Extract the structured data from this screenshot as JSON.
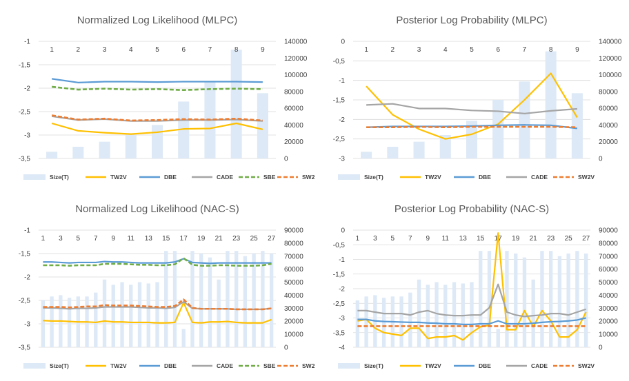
{
  "palette": {
    "bar": "#dde9f6",
    "TW2V": "#ffc000",
    "DBE": "#5b9bd5",
    "CADE": "#a5a5a5",
    "SBE": "#70ad47",
    "SW2V": "#ed7d31",
    "grid": "#d9d9d9"
  },
  "chart_data": [
    {
      "type": "bar+line",
      "title": "Normalized Log Likelihood (MLPC)",
      "legend": [
        "Size(T)",
        "TW2V",
        "DBE",
        "CADE",
        "SBE",
        "SW2V"
      ],
      "legend_position": "bottom",
      "grid": true,
      "x": [
        "1",
        "2",
        "3",
        "4",
        "5",
        "6",
        "7",
        "8",
        "9"
      ],
      "x_tick_labels": [
        "1",
        "2",
        "3",
        "4",
        "5",
        "6",
        "7",
        "8",
        "9"
      ],
      "ylim": [
        -3.5,
        -1
      ],
      "yticks": [
        -3.5,
        -3,
        -2.5,
        -2,
        -1.5,
        -1
      ],
      "ytick_labels": [
        "-3,5",
        "-3",
        "-2,5",
        "-2",
        "-1,5",
        "-1"
      ],
      "y2lim": [
        0,
        140000
      ],
      "y2ticks": [
        0,
        20000,
        40000,
        60000,
        80000,
        100000,
        120000,
        140000
      ],
      "bars": [
        8000,
        14000,
        20000,
        28000,
        40000,
        68000,
        92000,
        130000,
        78000
      ],
      "series": [
        {
          "name": "TW2V",
          "values": [
            -2.75,
            -2.91,
            -2.95,
            -2.98,
            -2.94,
            -2.87,
            -2.86,
            -2.75,
            -2.88
          ]
        },
        {
          "name": "DBE",
          "values": [
            -1.8,
            -1.88,
            -1.86,
            -1.86,
            -1.87,
            -1.86,
            -1.86,
            -1.86,
            -1.87
          ]
        },
        {
          "name": "CADE",
          "values": [
            -2.6,
            -2.68,
            -2.66,
            -2.7,
            -2.7,
            -2.68,
            -2.68,
            -2.67,
            -2.7
          ]
        },
        {
          "name": "SBE",
          "values": [
            -1.97,
            -2.03,
            -2.01,
            -2.03,
            -2.02,
            -2.04,
            -2.02,
            -2.01,
            -2.02
          ]
        },
        {
          "name": "SW2V",
          "values": [
            -2.58,
            -2.67,
            -2.65,
            -2.69,
            -2.68,
            -2.66,
            -2.67,
            -2.65,
            -2.69
          ]
        }
      ]
    },
    {
      "type": "bar+line",
      "title": "Posterior Log Probability (MLPC)",
      "legend": [
        "Size(T)",
        "TW2V",
        "DBE",
        "CADE",
        "SW2V"
      ],
      "legend_position": "bottom",
      "grid": true,
      "x": [
        "1",
        "2",
        "3",
        "4",
        "5",
        "6",
        "7",
        "8",
        "9"
      ],
      "x_tick_labels": [
        "1",
        "2",
        "3",
        "4",
        "5",
        "6",
        "7",
        "8",
        "9"
      ],
      "ylim": [
        -3,
        0
      ],
      "yticks": [
        -3,
        -2.5,
        -2,
        -1.5,
        -1,
        -0.5,
        0
      ],
      "ytick_labels": [
        "-3",
        "-2,5",
        "-2",
        "-1,5",
        "-1",
        "-0,5",
        "0"
      ],
      "y2lim": [
        0,
        140000
      ],
      "y2ticks": [
        0,
        20000,
        40000,
        60000,
        80000,
        100000,
        120000,
        140000
      ],
      "bars": [
        8000,
        14000,
        20000,
        28000,
        45000,
        70000,
        92000,
        128000,
        78000
      ],
      "series": [
        {
          "name": "TW2V",
          "values": [
            -1.15,
            -1.88,
            -2.25,
            -2.5,
            -2.38,
            -2.12,
            -1.5,
            -0.82,
            -1.95
          ]
        },
        {
          "name": "DBE",
          "values": [
            -2.2,
            -2.18,
            -2.18,
            -2.18,
            -2.17,
            -2.15,
            -2.14,
            -2.15,
            -2.23
          ]
        },
        {
          "name": "CADE",
          "values": [
            -1.63,
            -1.6,
            -1.72,
            -1.72,
            -1.77,
            -1.79,
            -1.85,
            -1.78,
            -1.73
          ]
        },
        {
          "name": "SW2V",
          "values": [
            -2.2,
            -2.2,
            -2.19,
            -2.2,
            -2.19,
            -2.19,
            -2.19,
            -2.19,
            -2.2
          ]
        }
      ]
    },
    {
      "type": "bar+line",
      "title": "Normalized Log Likelihood (NAC-S)",
      "legend": [
        "Size(T)",
        "TW2V",
        "DBE",
        "CADE",
        "SBE",
        "SW2V"
      ],
      "legend_position": "bottom",
      "grid": true,
      "x": [
        "1",
        "2",
        "3",
        "4",
        "5",
        "6",
        "7",
        "8",
        "9",
        "10",
        "11",
        "12",
        "13",
        "14",
        "15",
        "16",
        "17",
        "18",
        "19",
        "20",
        "21",
        "22",
        "23",
        "24",
        "25",
        "26",
        "27"
      ],
      "x_tick_labels": [
        "1",
        "3",
        "5",
        "7",
        "9",
        "11",
        "13",
        "15",
        "17",
        "19",
        "21",
        "23",
        "25",
        "27"
      ],
      "ylim": [
        -3.5,
        -1
      ],
      "yticks": [
        -3.5,
        -3,
        -2.5,
        -2,
        -1.5,
        -1
      ],
      "ytick_labels": [
        "-3,5",
        "-3",
        "-2,5",
        "-2",
        "-1,5",
        "-1"
      ],
      "y2lim": [
        0,
        90000
      ],
      "y2ticks": [
        0,
        10000,
        20000,
        30000,
        40000,
        50000,
        60000,
        70000,
        80000,
        90000
      ],
      "bars": [
        36000,
        39000,
        40000,
        38000,
        39000,
        39000,
        42000,
        52000,
        48000,
        50000,
        48000,
        50000,
        49000,
        50000,
        74000,
        74000,
        14000,
        74000,
        72000,
        69000,
        52000,
        74000,
        74000,
        70000,
        72000,
        74000,
        72000
      ],
      "series": [
        {
          "name": "TW2V",
          "values": [
            -2.93,
            -2.94,
            -2.94,
            -2.95,
            -2.96,
            -2.96,
            -2.97,
            -2.94,
            -2.96,
            -2.96,
            -2.97,
            -2.97,
            -2.97,
            -2.98,
            -2.98,
            -2.97,
            -2.55,
            -2.97,
            -2.98,
            -2.96,
            -2.96,
            -2.95,
            -2.97,
            -2.98,
            -2.98,
            -2.98,
            -2.91
          ]
        },
        {
          "name": "DBE",
          "values": [
            -1.68,
            -1.68,
            -1.69,
            -1.7,
            -1.69,
            -1.69,
            -1.69,
            -1.67,
            -1.68,
            -1.68,
            -1.69,
            -1.7,
            -1.7,
            -1.7,
            -1.7,
            -1.68,
            -1.61,
            -1.69,
            -1.7,
            -1.71,
            -1.7,
            -1.7,
            -1.7,
            -1.7,
            -1.7,
            -1.7,
            -1.7
          ]
        },
        {
          "name": "CADE",
          "values": [
            -2.66,
            -2.66,
            -2.67,
            -2.68,
            -2.67,
            -2.67,
            -2.66,
            -2.64,
            -2.64,
            -2.64,
            -2.64,
            -2.65,
            -2.66,
            -2.66,
            -2.67,
            -2.65,
            -2.53,
            -2.67,
            -2.68,
            -2.68,
            -2.68,
            -2.68,
            -2.69,
            -2.69,
            -2.69,
            -2.69,
            -2.67
          ]
        },
        {
          "name": "SBE",
          "values": [
            -1.75,
            -1.75,
            -1.75,
            -1.76,
            -1.75,
            -1.75,
            -1.75,
            -1.72,
            -1.72,
            -1.72,
            -1.73,
            -1.74,
            -1.74,
            -1.75,
            -1.75,
            -1.73,
            -1.6,
            -1.74,
            -1.76,
            -1.76,
            -1.75,
            -1.75,
            -1.76,
            -1.76,
            -1.76,
            -1.75,
            -1.72
          ]
        },
        {
          "name": "SW2V",
          "values": [
            -2.64,
            -2.64,
            -2.64,
            -2.65,
            -2.64,
            -2.63,
            -2.63,
            -2.6,
            -2.61,
            -2.61,
            -2.61,
            -2.62,
            -2.63,
            -2.64,
            -2.64,
            -2.62,
            -2.48,
            -2.66,
            -2.68,
            -2.68,
            -2.68,
            -2.68,
            -2.69,
            -2.69,
            -2.69,
            -2.69,
            -2.67
          ]
        }
      ]
    },
    {
      "type": "bar+line",
      "title": "Posterior Log Probability (NAC-S)",
      "legend": [
        "Size(T)",
        "TW2V",
        "DBE",
        "CADE",
        "SW2V"
      ],
      "legend_position": "bottom",
      "grid": true,
      "x": [
        "1",
        "2",
        "3",
        "4",
        "5",
        "6",
        "7",
        "8",
        "9",
        "10",
        "11",
        "12",
        "13",
        "14",
        "15",
        "16",
        "17",
        "18",
        "19",
        "20",
        "21",
        "22",
        "23",
        "24",
        "25",
        "26",
        "27"
      ],
      "x_tick_labels": [
        "1",
        "3",
        "5",
        "7",
        "9",
        "11",
        "13",
        "15",
        "17",
        "19",
        "21",
        "23",
        "25",
        "27"
      ],
      "ylim": [
        -4,
        0
      ],
      "yticks": [
        -4,
        -3.5,
        -3,
        -2.5,
        -2,
        -1.5,
        -1,
        -0.5,
        0
      ],
      "ytick_labels": [
        "-4",
        "-3,5",
        "-3",
        "-2,5",
        "-2",
        "-1,5",
        "-1",
        "-0,5",
        "0"
      ],
      "y2lim": [
        0,
        90000
      ],
      "y2ticks": [
        0,
        10000,
        20000,
        30000,
        40000,
        50000,
        60000,
        70000,
        80000,
        90000
      ],
      "bars": [
        36000,
        39000,
        40000,
        38000,
        39000,
        39000,
        42000,
        52000,
        48000,
        50000,
        48000,
        50000,
        49000,
        50000,
        74000,
        74000,
        14000,
        74000,
        72000,
        69000,
        52000,
        74000,
        74000,
        70000,
        72000,
        74000,
        72000
      ],
      "series": [
        {
          "name": "TW2V",
          "values": [
            -3.1,
            -3.05,
            -3.35,
            -3.5,
            -3.55,
            -3.6,
            -3.35,
            -3.35,
            -3.7,
            -3.65,
            -3.65,
            -3.6,
            -3.75,
            -3.5,
            -3.3,
            -3.25,
            -0.1,
            -3.4,
            -3.4,
            -2.75,
            -3.3,
            -2.75,
            -3.1,
            -3.65,
            -3.65,
            -3.4,
            -2.8
          ]
        },
        {
          "name": "DBE",
          "values": [
            -3.05,
            -3.05,
            -3.1,
            -3.12,
            -3.13,
            -3.14,
            -3.15,
            -3.15,
            -3.17,
            -3.18,
            -3.2,
            -3.2,
            -3.22,
            -3.22,
            -3.2,
            -3.2,
            -3.1,
            -3.2,
            -3.2,
            -3.2,
            -3.18,
            -3.15,
            -3.13,
            -3.12,
            -3.1,
            -3.07,
            -3.0
          ]
        },
        {
          "name": "CADE",
          "values": [
            -2.75,
            -2.75,
            -2.8,
            -2.85,
            -2.85,
            -2.85,
            -2.9,
            -2.8,
            -2.75,
            -2.85,
            -2.9,
            -2.92,
            -2.92,
            -2.9,
            -2.9,
            -2.65,
            -1.85,
            -2.8,
            -2.9,
            -2.95,
            -2.92,
            -2.9,
            -2.85,
            -2.85,
            -2.9,
            -2.8,
            -2.7
          ]
        },
        {
          "name": "SW2V",
          "values": [
            -3.28,
            -3.28,
            -3.28,
            -3.28,
            -3.28,
            -3.28,
            -3.28,
            -3.28,
            -3.28,
            -3.28,
            -3.28,
            -3.28,
            -3.28,
            -3.28,
            -3.28,
            -3.28,
            -3.28,
            -3.28,
            -3.28,
            -3.28,
            -3.28,
            -3.28,
            -3.28,
            -3.28,
            -3.28,
            -3.28,
            -3.28
          ]
        }
      ]
    }
  ]
}
